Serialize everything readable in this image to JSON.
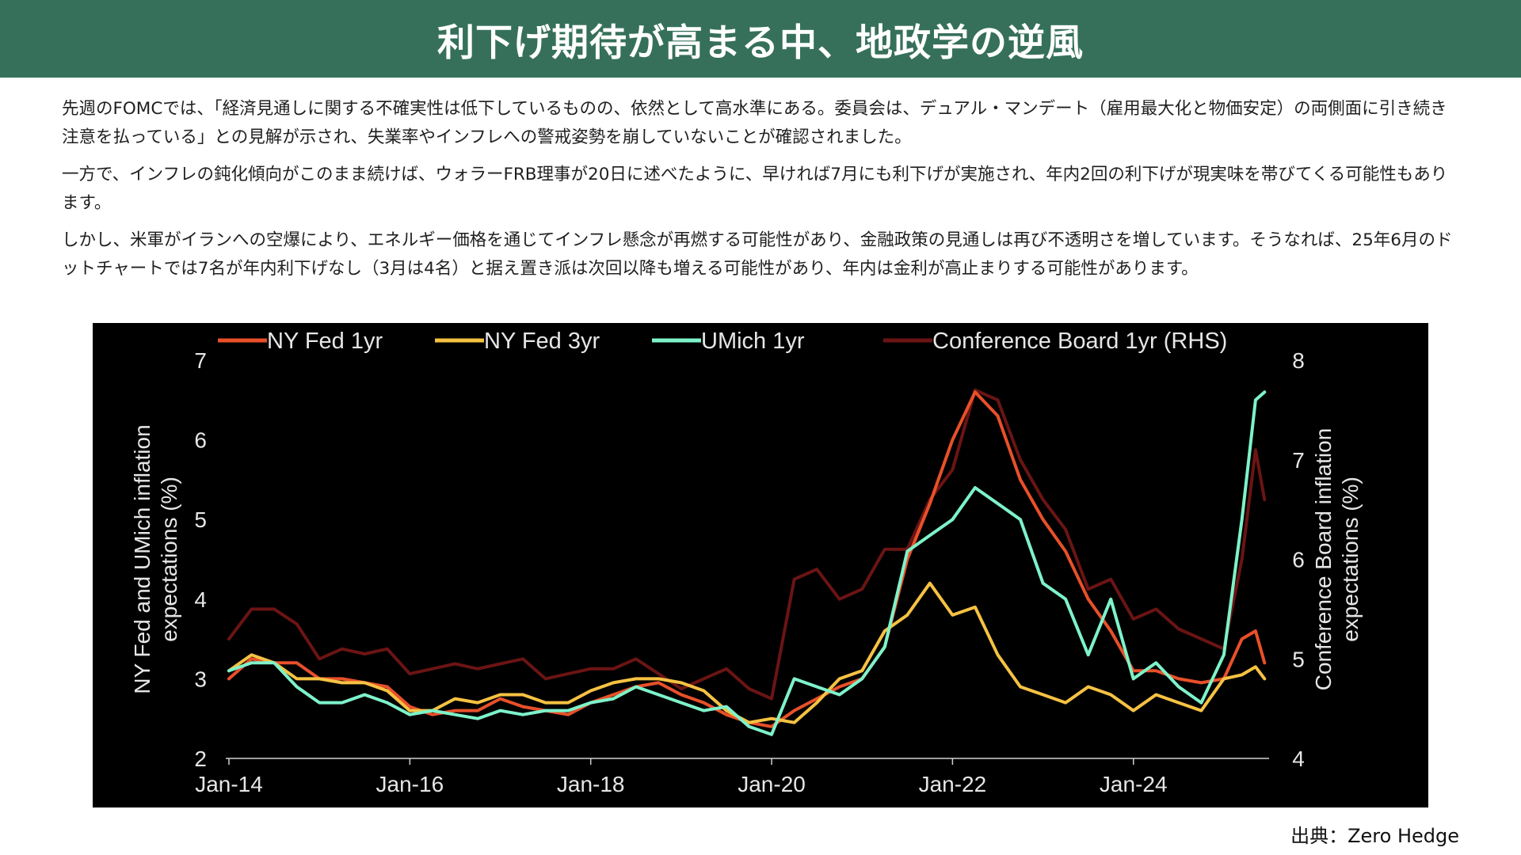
{
  "header": {
    "title": "利下げ期待が高まる中、地政学の逆風"
  },
  "paragraphs": [
    "先週のFOMCでは、「経済見通しに関する不確実性は低下しているものの、依然として高水準にある。委員会は、デュアル・マンデート（雇用最大化と物価安定）の両側面に引き続き注意を払っている」との見解が示され、失業率やインフレへの警戒姿勢を崩していないことが確認されました。",
    "一方で、インフレの鈍化傾向がこのまま続けば、ウォラーFRB理事が20日に述べたように、早ければ7月にも利下げが実施され、年内2回の利下げが現実味を帯びてくる可能性もあります。",
    "しかし、米軍がイランへの空爆により、エネルギー価格を通じてインフレ懸念が再燃する可能性があり、金融政策の見通しは再び不透明さを増しています。そうなれば、25年6月のドットチャートでは7名が年内利下げなし（3月は4名）と据え置き派は次回以降も増える可能性があり、年内は金利が高止まりする可能性があります。"
  ],
  "source": "出典：Zero Hedge",
  "chart_data": {
    "type": "line",
    "background": "#000000",
    "ylabel_left": "NY Fed and UMich inflation expectations (%)",
    "ylabel_right": "Conference Board inflation expectations (%)",
    "ylim_left": [
      2,
      7
    ],
    "ylim_right": [
      4,
      8
    ],
    "yticks_left": [
      "2",
      "3",
      "4",
      "5",
      "6",
      "7"
    ],
    "yticks_right": [
      "4",
      "5",
      "6",
      "7",
      "8"
    ],
    "xlim": [
      2014.0,
      2025.5
    ],
    "xticks": [
      {
        "x": 2014,
        "label": "Jan-14"
      },
      {
        "x": 2016,
        "label": "Jan-16"
      },
      {
        "x": 2018,
        "label": "Jan-18"
      },
      {
        "x": 2020,
        "label": "Jan-20"
      },
      {
        "x": 2022,
        "label": "Jan-22"
      },
      {
        "x": 2024,
        "label": "Jan-24"
      }
    ],
    "legend_position": "top",
    "series": [
      {
        "name": "NY Fed 1yr",
        "axis": "left",
        "color": "#e8502a",
        "points": [
          [
            2014.0,
            3.0
          ],
          [
            2014.25,
            3.25
          ],
          [
            2014.5,
            3.2
          ],
          [
            2014.75,
            3.2
          ],
          [
            2015.0,
            3.0
          ],
          [
            2015.25,
            3.0
          ],
          [
            2015.5,
            2.95
          ],
          [
            2015.75,
            2.9
          ],
          [
            2016.0,
            2.65
          ],
          [
            2016.25,
            2.55
          ],
          [
            2016.5,
            2.6
          ],
          [
            2016.75,
            2.6
          ],
          [
            2017.0,
            2.75
          ],
          [
            2017.25,
            2.65
          ],
          [
            2017.5,
            2.6
          ],
          [
            2017.75,
            2.55
          ],
          [
            2018.0,
            2.7
          ],
          [
            2018.25,
            2.8
          ],
          [
            2018.5,
            2.9
          ],
          [
            2018.75,
            2.95
          ],
          [
            2019.0,
            2.8
          ],
          [
            2019.25,
            2.7
          ],
          [
            2019.5,
            2.55
          ],
          [
            2019.75,
            2.45
          ],
          [
            2020.0,
            2.4
          ],
          [
            2020.25,
            2.6
          ],
          [
            2020.5,
            2.75
          ],
          [
            2020.75,
            2.9
          ],
          [
            2021.0,
            3.0
          ],
          [
            2021.25,
            3.4
          ],
          [
            2021.5,
            4.5
          ],
          [
            2021.75,
            5.2
          ],
          [
            2022.0,
            6.0
          ],
          [
            2022.25,
            6.6
          ],
          [
            2022.5,
            6.3
          ],
          [
            2022.75,
            5.5
          ],
          [
            2023.0,
            5.0
          ],
          [
            2023.25,
            4.6
          ],
          [
            2023.5,
            4.0
          ],
          [
            2023.75,
            3.6
          ],
          [
            2024.0,
            3.1
          ],
          [
            2024.25,
            3.1
          ],
          [
            2024.5,
            3.0
          ],
          [
            2024.75,
            2.95
          ],
          [
            2025.0,
            3.0
          ],
          [
            2025.2,
            3.5
          ],
          [
            2025.35,
            3.6
          ],
          [
            2025.45,
            3.2
          ]
        ]
      },
      {
        "name": "NY Fed 3yr",
        "axis": "left",
        "color": "#f5c242",
        "points": [
          [
            2014.0,
            3.1
          ],
          [
            2014.25,
            3.3
          ],
          [
            2014.5,
            3.2
          ],
          [
            2014.75,
            3.0
          ],
          [
            2015.0,
            3.0
          ],
          [
            2015.25,
            2.95
          ],
          [
            2015.5,
            2.95
          ],
          [
            2015.75,
            2.85
          ],
          [
            2016.0,
            2.6
          ],
          [
            2016.25,
            2.6
          ],
          [
            2016.5,
            2.75
          ],
          [
            2016.75,
            2.7
          ],
          [
            2017.0,
            2.8
          ],
          [
            2017.25,
            2.8
          ],
          [
            2017.5,
            2.7
          ],
          [
            2017.75,
            2.7
          ],
          [
            2018.0,
            2.85
          ],
          [
            2018.25,
            2.95
          ],
          [
            2018.5,
            3.0
          ],
          [
            2018.75,
            3.0
          ],
          [
            2019.0,
            2.95
          ],
          [
            2019.25,
            2.85
          ],
          [
            2019.5,
            2.6
          ],
          [
            2019.75,
            2.45
          ],
          [
            2020.0,
            2.5
          ],
          [
            2020.25,
            2.45
          ],
          [
            2020.5,
            2.7
          ],
          [
            2020.75,
            3.0
          ],
          [
            2021.0,
            3.1
          ],
          [
            2021.25,
            3.6
          ],
          [
            2021.5,
            3.8
          ],
          [
            2021.75,
            4.2
          ],
          [
            2022.0,
            3.8
          ],
          [
            2022.25,
            3.9
          ],
          [
            2022.5,
            3.3
          ],
          [
            2022.75,
            2.9
          ],
          [
            2023.0,
            2.8
          ],
          [
            2023.25,
            2.7
          ],
          [
            2023.5,
            2.9
          ],
          [
            2023.75,
            2.8
          ],
          [
            2024.0,
            2.6
          ],
          [
            2024.25,
            2.8
          ],
          [
            2024.5,
            2.7
          ],
          [
            2024.75,
            2.6
          ],
          [
            2025.0,
            3.0
          ],
          [
            2025.2,
            3.05
          ],
          [
            2025.35,
            3.15
          ],
          [
            2025.45,
            3.0
          ]
        ]
      },
      {
        "name": "UMich 1yr",
        "axis": "left",
        "color": "#7ef2c9",
        "points": [
          [
            2014.0,
            3.1
          ],
          [
            2014.25,
            3.2
          ],
          [
            2014.5,
            3.2
          ],
          [
            2014.75,
            2.9
          ],
          [
            2015.0,
            2.7
          ],
          [
            2015.25,
            2.7
          ],
          [
            2015.5,
            2.8
          ],
          [
            2015.75,
            2.7
          ],
          [
            2016.0,
            2.55
          ],
          [
            2016.25,
            2.6
          ],
          [
            2016.5,
            2.55
          ],
          [
            2016.75,
            2.5
          ],
          [
            2017.0,
            2.6
          ],
          [
            2017.25,
            2.55
          ],
          [
            2017.5,
            2.6
          ],
          [
            2017.75,
            2.6
          ],
          [
            2018.0,
            2.7
          ],
          [
            2018.25,
            2.75
          ],
          [
            2018.5,
            2.9
          ],
          [
            2018.75,
            2.8
          ],
          [
            2019.0,
            2.7
          ],
          [
            2019.25,
            2.6
          ],
          [
            2019.5,
            2.65
          ],
          [
            2019.75,
            2.4
          ],
          [
            2020.0,
            2.3
          ],
          [
            2020.25,
            3.0
          ],
          [
            2020.5,
            2.9
          ],
          [
            2020.75,
            2.8
          ],
          [
            2021.0,
            3.0
          ],
          [
            2021.25,
            3.4
          ],
          [
            2021.5,
            4.6
          ],
          [
            2021.75,
            4.8
          ],
          [
            2022.0,
            5.0
          ],
          [
            2022.25,
            5.4
          ],
          [
            2022.5,
            5.2
          ],
          [
            2022.75,
            5.0
          ],
          [
            2023.0,
            4.2
          ],
          [
            2023.25,
            4.0
          ],
          [
            2023.5,
            3.3
          ],
          [
            2023.75,
            4.0
          ],
          [
            2024.0,
            3.0
          ],
          [
            2024.25,
            3.2
          ],
          [
            2024.5,
            2.9
          ],
          [
            2024.75,
            2.7
          ],
          [
            2025.0,
            3.3
          ],
          [
            2025.2,
            5.0
          ],
          [
            2025.35,
            6.5
          ],
          [
            2025.45,
            6.6
          ]
        ]
      },
      {
        "name": "Conference Board 1yr (RHS)",
        "axis": "right",
        "color": "#6b1414",
        "points": [
          [
            2014.0,
            5.2
          ],
          [
            2014.25,
            5.5
          ],
          [
            2014.5,
            5.5
          ],
          [
            2014.75,
            5.35
          ],
          [
            2015.0,
            5.0
          ],
          [
            2015.25,
            5.1
          ],
          [
            2015.5,
            5.05
          ],
          [
            2015.75,
            5.1
          ],
          [
            2016.0,
            4.85
          ],
          [
            2016.25,
            4.9
          ],
          [
            2016.5,
            4.95
          ],
          [
            2016.75,
            4.9
          ],
          [
            2017.0,
            4.95
          ],
          [
            2017.25,
            5.0
          ],
          [
            2017.5,
            4.8
          ],
          [
            2017.75,
            4.85
          ],
          [
            2018.0,
            4.9
          ],
          [
            2018.25,
            4.9
          ],
          [
            2018.5,
            5.0
          ],
          [
            2018.75,
            4.85
          ],
          [
            2019.0,
            4.7
          ],
          [
            2019.25,
            4.8
          ],
          [
            2019.5,
            4.9
          ],
          [
            2019.75,
            4.7
          ],
          [
            2020.0,
            4.6
          ],
          [
            2020.25,
            5.8
          ],
          [
            2020.5,
            5.9
          ],
          [
            2020.75,
            5.6
          ],
          [
            2021.0,
            5.7
          ],
          [
            2021.25,
            6.1
          ],
          [
            2021.5,
            6.1
          ],
          [
            2021.75,
            6.6
          ],
          [
            2022.0,
            6.9
          ],
          [
            2022.25,
            7.7
          ],
          [
            2022.5,
            7.6
          ],
          [
            2022.75,
            7.0
          ],
          [
            2023.0,
            6.6
          ],
          [
            2023.25,
            6.3
          ],
          [
            2023.5,
            5.7
          ],
          [
            2023.75,
            5.8
          ],
          [
            2024.0,
            5.4
          ],
          [
            2024.25,
            5.5
          ],
          [
            2024.5,
            5.3
          ],
          [
            2024.75,
            5.2
          ],
          [
            2025.0,
            5.1
          ],
          [
            2025.2,
            6.0
          ],
          [
            2025.35,
            7.1
          ],
          [
            2025.45,
            6.6
          ]
        ]
      }
    ]
  }
}
